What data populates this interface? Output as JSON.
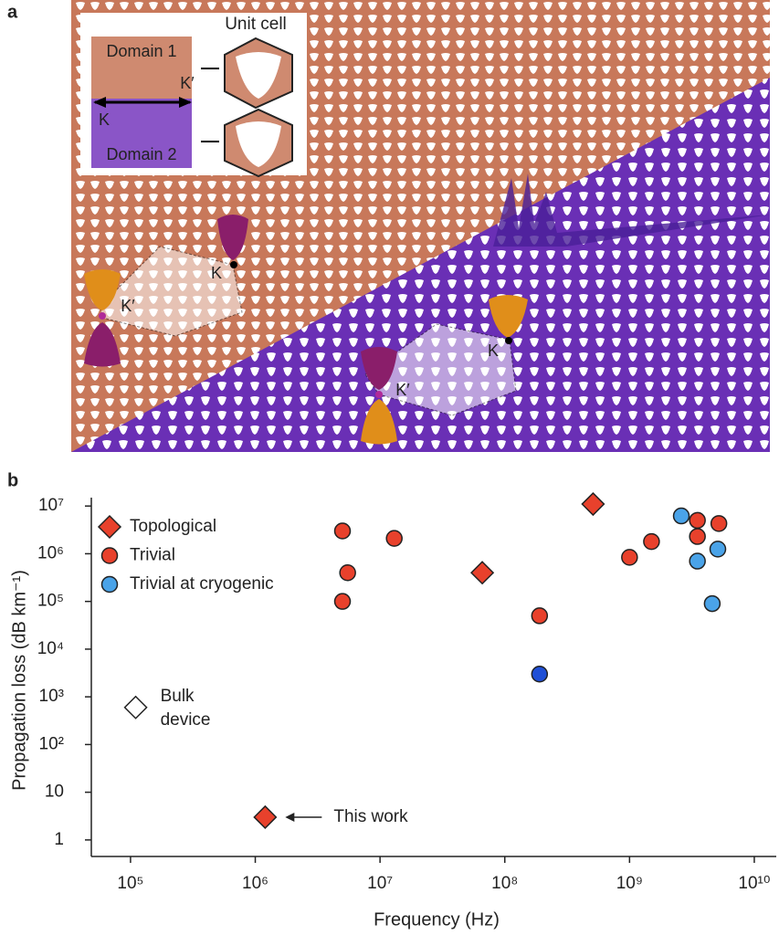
{
  "panel_a": {
    "panel_label": "a",
    "inset": {
      "unit_cell": "Unit cell",
      "domain_1": "Domain 1",
      "domain_2": "Domain 2",
      "k_prime": "K′",
      "k": "K"
    },
    "valley_labels": {
      "upper_k": "K",
      "upper_k_prime": "K′",
      "lower_k": "K",
      "lower_k_prime": "K′"
    }
  },
  "chart_data": {
    "type": "scatter",
    "panel_label": "b",
    "x_label": "Frequency (Hz)",
    "y_label": "Propagation loss (dB km⁻¹)",
    "log_x": true,
    "log_y": true,
    "xlim": [
      48500,
      15000000000
    ],
    "ylim": [
      0.45,
      15000000
    ],
    "xticks": [
      {
        "value": 100000,
        "label": "10⁵"
      },
      {
        "value": 1000000,
        "label": "10⁶"
      },
      {
        "value": 10000000,
        "label": "10⁷"
      },
      {
        "value": 100000000,
        "label": "10⁸"
      },
      {
        "value": 1000000000,
        "label": "10⁹"
      },
      {
        "value": 10000000000,
        "label": "10¹⁰"
      }
    ],
    "yticks": [
      1,
      10,
      {
        "value": 100,
        "label": "10²"
      },
      {
        "value": 1000,
        "label": "10³"
      },
      {
        "value": 10000,
        "label": "10⁴"
      },
      {
        "value": 100000,
        "label": "10⁵"
      },
      {
        "value": 1000000,
        "label": "10⁶"
      },
      {
        "value": 10000000,
        "label": "10⁷"
      }
    ],
    "legend": "top-left",
    "series": [
      {
        "name": "Topological",
        "marker": "diamond",
        "color": "#e8412c",
        "x": [
          510000000,
          66000000,
          1200000
        ],
        "values": [
          11000000,
          400000,
          3
        ]
      },
      {
        "name": "Trivial",
        "marker": "circle",
        "color": "#e8412c",
        "x": [
          5000000,
          5500000,
          5000000,
          13000000,
          190000000,
          1000000000,
          1500000000,
          3500000000,
          3500000000,
          5200000000
        ],
        "values": [
          3000000,
          400000,
          100000,
          2100000,
          50000,
          840000,
          1800000,
          5000000,
          2300000,
          4300000
        ]
      },
      {
        "name": "Trivial at cryogenic",
        "marker": "circle",
        "color": "#4aa3e8",
        "colors": [
          "#4aa3e8",
          "#4aa3e8",
          "#4aa3e8",
          "#4aa3e8",
          "#1f4fd6"
        ],
        "x": [
          2600000000,
          3500000000,
          5100000000,
          4600000000,
          190000000
        ],
        "values": [
          6200000,
          700000,
          1250000,
          90000,
          3000
        ]
      }
    ],
    "bulk_device": {
      "label_lines": [
        "Bulk",
        "device"
      ],
      "marker": "diamond",
      "color": "#ffffff",
      "x": 110000,
      "value": 600
    },
    "this_work": {
      "label": "This work"
    }
  }
}
